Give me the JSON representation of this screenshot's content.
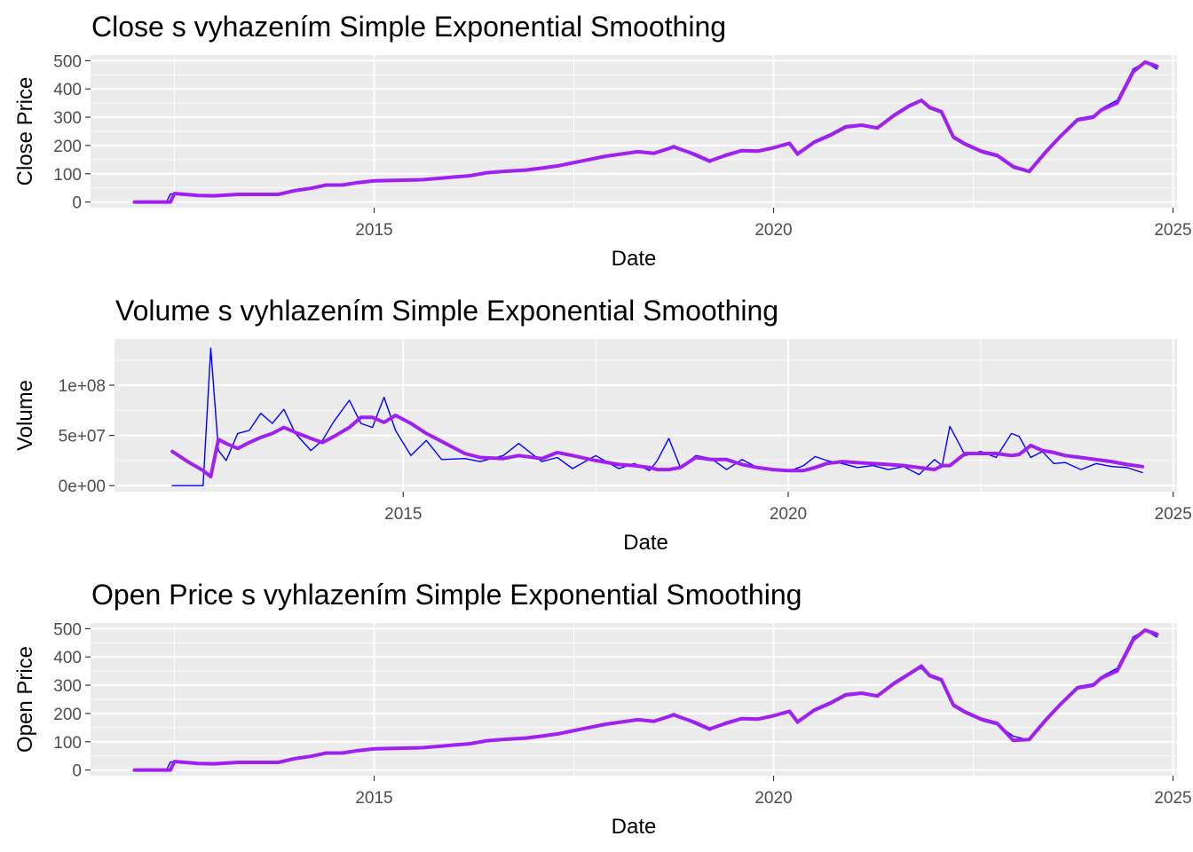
{
  "colors": {
    "panel": "#ebebeb",
    "grid": "#ffffff",
    "raw": "#0000ff",
    "smooth": "#a020f0",
    "tick_text": "#4d4d4d",
    "tick_mark": "#333333"
  },
  "chart_data": [
    {
      "id": "close",
      "type": "line",
      "title": "Close s vyhazením Simple Exponential Smoothing",
      "xlabel": "Date",
      "ylabel": "Close Price",
      "xlim": [
        2011.45,
        2025.05
      ],
      "ylim": [
        -20,
        520
      ],
      "x_ticks": [
        2015,
        2020,
        2025
      ],
      "x_tick_labels": [
        "2015",
        "2020",
        "2025"
      ],
      "y_ticks": [
        0,
        100,
        200,
        300,
        400,
        500
      ],
      "y_tick_labels": [
        "0",
        "100",
        "200",
        "300",
        "400",
        "500"
      ],
      "grid": true,
      "series": [
        {
          "role": "raw",
          "x": [
            2012.0,
            2012.2,
            2012.4,
            2012.45,
            2012.5,
            2012.6,
            2012.8,
            2013.0,
            2013.3,
            2013.5,
            2013.8,
            2014.0,
            2014.2,
            2014.4,
            2014.6,
            2014.8,
            2015.0,
            2015.3,
            2015.6,
            2015.9,
            2016.2,
            2016.4,
            2016.6,
            2016.9,
            2017.1,
            2017.3,
            2017.6,
            2017.9,
            2018.1,
            2018.3,
            2018.5,
            2018.75,
            2019.0,
            2019.2,
            2019.4,
            2019.6,
            2019.8,
            2020.0,
            2020.2,
            2020.3,
            2020.5,
            2020.7,
            2020.9,
            2021.1,
            2021.3,
            2021.5,
            2021.7,
            2021.85,
            2021.95,
            2022.1,
            2022.25,
            2022.4,
            2022.6,
            2022.8,
            2023.0,
            2023.2,
            2023.4,
            2023.6,
            2023.8,
            2024.0,
            2024.1,
            2024.3,
            2024.5,
            2024.65,
            2024.8
          ],
          "y": [
            0,
            0,
            0,
            28,
            30,
            27,
            22,
            23,
            28,
            27,
            27,
            42,
            50,
            62,
            60,
            70,
            76,
            78,
            80,
            88,
            95,
            105,
            110,
            115,
            122,
            130,
            148,
            165,
            172,
            180,
            170,
            200,
            165,
            140,
            170,
            185,
            180,
            195,
            210,
            165,
            215,
            240,
            270,
            275,
            260,
            310,
            345,
            360,
            330,
            315,
            225,
            200,
            175,
            160,
            120,
            105,
            180,
            240,
            295,
            305,
            330,
            360,
            470,
            495,
            470
          ]
        },
        {
          "role": "smooth",
          "x": [
            2012.0,
            2012.2,
            2012.4,
            2012.45,
            2012.5,
            2012.6,
            2012.8,
            2013.0,
            2013.3,
            2013.5,
            2013.8,
            2014.0,
            2014.2,
            2014.4,
            2014.6,
            2014.8,
            2015.0,
            2015.3,
            2015.6,
            2015.9,
            2016.2,
            2016.4,
            2016.6,
            2016.9,
            2017.1,
            2017.3,
            2017.6,
            2017.9,
            2018.1,
            2018.3,
            2018.5,
            2018.75,
            2019.0,
            2019.2,
            2019.4,
            2019.6,
            2019.8,
            2020.0,
            2020.2,
            2020.3,
            2020.5,
            2020.7,
            2020.9,
            2021.1,
            2021.3,
            2021.5,
            2021.7,
            2021.85,
            2021.95,
            2022.1,
            2022.25,
            2022.4,
            2022.6,
            2022.8,
            2023.0,
            2023.2,
            2023.4,
            2023.6,
            2023.8,
            2024.0,
            2024.1,
            2024.3,
            2024.5,
            2024.65,
            2024.8
          ],
          "y": [
            0,
            0,
            0,
            0,
            30,
            28,
            23,
            22,
            27,
            27,
            27,
            40,
            48,
            60,
            60,
            69,
            75,
            77,
            79,
            86,
            93,
            103,
            108,
            113,
            120,
            128,
            145,
            162,
            170,
            178,
            172,
            195,
            170,
            145,
            165,
            182,
            180,
            192,
            208,
            170,
            210,
            235,
            265,
            272,
            262,
            305,
            340,
            360,
            335,
            320,
            230,
            205,
            180,
            165,
            125,
            108,
            175,
            235,
            290,
            300,
            325,
            350,
            460,
            495,
            480
          ]
        }
      ]
    },
    {
      "id": "volume",
      "type": "line",
      "title": "Volume s vyhlazením Simple Exponential Smoothing",
      "xlabel": "Date",
      "ylabel": "Volume",
      "xlim": [
        2011.25,
        2025.05
      ],
      "ylim": [
        -6000000,
        146000000
      ],
      "x_ticks": [
        2015,
        2020,
        2025
      ],
      "x_tick_labels": [
        "2015",
        "2020",
        "2025"
      ],
      "y_ticks": [
        0,
        50000000,
        100000000
      ],
      "y_tick_labels": [
        "0e+00",
        "5e+07",
        "1e+08"
      ],
      "grid": true,
      "series": [
        {
          "role": "raw",
          "x": [
            2012.0,
            2012.2,
            2012.4,
            2012.5,
            2012.6,
            2012.7,
            2012.85,
            2013.0,
            2013.15,
            2013.3,
            2013.45,
            2013.6,
            2013.8,
            2013.95,
            2014.1,
            2014.3,
            2014.45,
            2014.6,
            2014.75,
            2014.9,
            2015.1,
            2015.3,
            2015.5,
            2015.8,
            2016.0,
            2016.3,
            2016.5,
            2016.8,
            2017.0,
            2017.2,
            2017.5,
            2017.8,
            2018.0,
            2018.2,
            2018.3,
            2018.45,
            2018.6,
            2018.8,
            2019.0,
            2019.2,
            2019.4,
            2019.6,
            2019.8,
            2020.0,
            2020.2,
            2020.35,
            2020.5,
            2020.7,
            2020.9,
            2021.1,
            2021.3,
            2021.5,
            2021.7,
            2021.9,
            2022.0,
            2022.1,
            2022.3,
            2022.5,
            2022.7,
            2022.9,
            2023.0,
            2023.15,
            2023.3,
            2023.45,
            2023.6,
            2023.8,
            2024.0,
            2024.2,
            2024.4,
            2024.6
          ],
          "y": [
            0,
            0,
            0,
            137000000,
            35000000,
            25000000,
            52000000,
            55000000,
            72000000,
            62000000,
            76000000,
            52000000,
            35000000,
            45000000,
            64000000,
            85000000,
            62000000,
            58000000,
            88000000,
            55000000,
            30000000,
            45000000,
            26000000,
            27000000,
            24000000,
            30000000,
            42000000,
            24000000,
            28000000,
            17000000,
            30000000,
            17000000,
            22000000,
            15000000,
            25000000,
            47000000,
            18000000,
            30000000,
            27000000,
            16000000,
            26000000,
            18000000,
            15000000,
            14000000,
            20000000,
            29000000,
            25000000,
            22000000,
            18000000,
            20000000,
            16000000,
            19000000,
            11000000,
            26000000,
            20000000,
            59000000,
            30000000,
            34000000,
            28000000,
            52000000,
            49000000,
            28000000,
            34000000,
            22000000,
            23000000,
            16000000,
            22000000,
            19000000,
            18000000,
            13000000
          ]
        },
        {
          "role": "smooth",
          "x": [
            2012.0,
            2012.2,
            2012.4,
            2012.5,
            2012.6,
            2012.7,
            2012.85,
            2013.0,
            2013.15,
            2013.3,
            2013.45,
            2013.6,
            2013.8,
            2013.95,
            2014.1,
            2014.3,
            2014.45,
            2014.6,
            2014.75,
            2014.9,
            2015.1,
            2015.3,
            2015.5,
            2015.8,
            2016.0,
            2016.3,
            2016.5,
            2016.8,
            2017.0,
            2017.2,
            2017.5,
            2017.8,
            2018.0,
            2018.2,
            2018.3,
            2018.45,
            2018.6,
            2018.8,
            2019.0,
            2019.2,
            2019.4,
            2019.6,
            2019.8,
            2020.0,
            2020.2,
            2020.35,
            2020.5,
            2020.7,
            2020.9,
            2021.1,
            2021.3,
            2021.5,
            2021.7,
            2021.9,
            2022.0,
            2022.1,
            2022.3,
            2022.5,
            2022.7,
            2022.9,
            2023.0,
            2023.15,
            2023.3,
            2023.45,
            2023.6,
            2023.8,
            2024.0,
            2024.2,
            2024.4,
            2024.6
          ],
          "y": [
            34000000,
            24000000,
            15000000,
            9000000,
            46000000,
            42000000,
            37000000,
            43000000,
            48000000,
            52000000,
            58000000,
            53000000,
            47000000,
            43000000,
            49000000,
            58000000,
            68000000,
            68000000,
            63000000,
            70000000,
            62000000,
            52000000,
            44000000,
            32000000,
            28000000,
            27000000,
            30000000,
            27000000,
            33000000,
            30000000,
            25000000,
            21000000,
            20000000,
            18000000,
            16000000,
            16000000,
            18000000,
            28000000,
            26000000,
            26000000,
            21000000,
            18000000,
            16000000,
            15000000,
            15000000,
            18000000,
            22000000,
            24000000,
            23000000,
            22000000,
            21000000,
            20000000,
            18000000,
            16000000,
            20000000,
            20000000,
            32000000,
            32000000,
            32000000,
            30000000,
            31000000,
            40000000,
            35000000,
            33000000,
            30000000,
            28000000,
            26000000,
            24000000,
            21000000,
            19000000
          ]
        }
      ]
    },
    {
      "id": "open",
      "type": "line",
      "title": "Open Price s vyhlazením Simple Exponential Smoothing",
      "xlabel": "Date",
      "ylabel": "Open Price",
      "xlim": [
        2011.45,
        2025.05
      ],
      "ylim": [
        -20,
        520
      ],
      "x_ticks": [
        2015,
        2020,
        2025
      ],
      "x_tick_labels": [
        "2015",
        "2020",
        "2025"
      ],
      "y_ticks": [
        0,
        100,
        200,
        300,
        400,
        500
      ],
      "y_tick_labels": [
        "0",
        "100",
        "200",
        "300",
        "400",
        "500"
      ],
      "grid": true,
      "series": [
        {
          "role": "raw",
          "x": [
            2012.0,
            2012.2,
            2012.4,
            2012.45,
            2012.5,
            2012.6,
            2012.8,
            2013.0,
            2013.3,
            2013.5,
            2013.8,
            2014.0,
            2014.2,
            2014.4,
            2014.6,
            2014.8,
            2015.0,
            2015.3,
            2015.6,
            2015.9,
            2016.2,
            2016.4,
            2016.6,
            2016.9,
            2017.1,
            2017.3,
            2017.6,
            2017.9,
            2018.1,
            2018.3,
            2018.5,
            2018.75,
            2019.0,
            2019.2,
            2019.4,
            2019.6,
            2019.8,
            2020.0,
            2020.2,
            2020.3,
            2020.5,
            2020.7,
            2020.9,
            2021.1,
            2021.3,
            2021.5,
            2021.7,
            2021.85,
            2021.95,
            2022.1,
            2022.25,
            2022.4,
            2022.6,
            2022.8,
            2023.0,
            2023.2,
            2023.4,
            2023.6,
            2023.8,
            2024.0,
            2024.1,
            2024.3,
            2024.5,
            2024.65,
            2024.8
          ],
          "y": [
            0,
            0,
            0,
            28,
            30,
            27,
            22,
            23,
            28,
            27,
            27,
            42,
            50,
            62,
            60,
            70,
            76,
            78,
            80,
            88,
            95,
            105,
            110,
            115,
            122,
            130,
            148,
            165,
            172,
            180,
            170,
            200,
            165,
            140,
            170,
            185,
            180,
            195,
            210,
            165,
            215,
            240,
            270,
            275,
            260,
            310,
            345,
            360,
            330,
            315,
            225,
            200,
            175,
            160,
            120,
            105,
            180,
            240,
            295,
            305,
            330,
            360,
            470,
            495,
            470
          ]
        },
        {
          "role": "smooth",
          "x": [
            2012.0,
            2012.2,
            2012.4,
            2012.45,
            2012.5,
            2012.6,
            2012.8,
            2013.0,
            2013.3,
            2013.5,
            2013.8,
            2014.0,
            2014.2,
            2014.4,
            2014.6,
            2014.8,
            2015.0,
            2015.3,
            2015.6,
            2015.9,
            2016.2,
            2016.4,
            2016.6,
            2016.9,
            2017.1,
            2017.3,
            2017.6,
            2017.9,
            2018.1,
            2018.3,
            2018.5,
            2018.75,
            2019.0,
            2019.2,
            2019.4,
            2019.6,
            2019.8,
            2020.0,
            2020.2,
            2020.3,
            2020.5,
            2020.7,
            2020.9,
            2021.1,
            2021.3,
            2021.5,
            2021.7,
            2021.85,
            2021.95,
            2022.1,
            2022.25,
            2022.4,
            2022.6,
            2022.8,
            2023.0,
            2023.2,
            2023.4,
            2023.6,
            2023.8,
            2024.0,
            2024.1,
            2024.3,
            2024.5,
            2024.65,
            2024.8
          ],
          "y": [
            0,
            0,
            0,
            0,
            30,
            28,
            23,
            22,
            27,
            27,
            27,
            40,
            48,
            60,
            60,
            69,
            75,
            77,
            79,
            86,
            93,
            103,
            108,
            113,
            120,
            128,
            145,
            162,
            170,
            178,
            172,
            195,
            170,
            145,
            165,
            182,
            180,
            192,
            208,
            170,
            210,
            235,
            265,
            272,
            262,
            305,
            340,
            368,
            335,
            320,
            230,
            205,
            180,
            165,
            105,
            108,
            175,
            235,
            290,
            300,
            325,
            350,
            460,
            495,
            480
          ]
        }
      ]
    }
  ]
}
